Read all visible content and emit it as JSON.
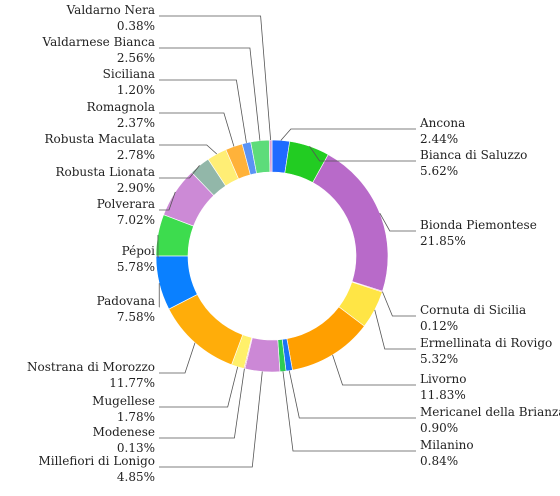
{
  "chart_data": {
    "type": "pie",
    "donut": true,
    "title": "",
    "legend": "none",
    "slices": [
      {
        "name": "Ancona",
        "label": "2.44%",
        "value": 2.44,
        "color": "#1f6bff"
      },
      {
        "name": "Bianca di Saluzzo",
        "label": "5.62%",
        "value": 5.62,
        "color": "#22cc22"
      },
      {
        "name": "Bionda Piemontese",
        "label": "21.85%",
        "value": 21.85,
        "color": "#b86ac9"
      },
      {
        "name": "Cornuta di Sicilia",
        "label": "0.12%",
        "value": 0.12,
        "color": "#e8206a"
      },
      {
        "name": "Ermellinata di Rovigo",
        "label": "5.32%",
        "value": 5.32,
        "color": "#ffe545"
      },
      {
        "name": "Livorno",
        "label": "11.83%",
        "value": 11.83,
        "color": "#ff9f00"
      },
      {
        "name": "Mericanel della Brianza",
        "label": "0.90%",
        "value": 0.9,
        "color": "#1a73f5"
      },
      {
        "name": "Milanino",
        "label": "0.84%",
        "value": 0.84,
        "color": "#2fcc55"
      },
      {
        "name": "Millefiori di Lonigo",
        "label": "4.85%",
        "value": 4.85,
        "color": "#cc88d6"
      },
      {
        "name": "Modenese",
        "label": "0.13%",
        "value": 0.13,
        "color": "#d5607a"
      },
      {
        "name": "Mugellese",
        "label": "1.78%",
        "value": 1.78,
        "color": "#fff06a"
      },
      {
        "name": "Nostrana di Morozzo",
        "label": "11.77%",
        "value": 11.77,
        "color": "#ffad0a"
      },
      {
        "name": "Padovana",
        "label": "7.58%",
        "value": 7.58,
        "color": "#0a80ff"
      },
      {
        "name": "Pépoi",
        "label": "5.78%",
        "value": 5.78,
        "color": "#3ddc4e"
      },
      {
        "name": "Polverara",
        "label": "7.02%",
        "value": 7.02,
        "color": "#cc8ad6"
      },
      {
        "name": "Robusta Lionata",
        "label": "2.90%",
        "value": 2.9,
        "color": "#92b7a9"
      },
      {
        "name": "Robusta Maculata",
        "label": "2.78%",
        "value": 2.78,
        "color": "#ffee75"
      },
      {
        "name": "Romagnola",
        "label": "2.37%",
        "value": 2.37,
        "color": "#ffb23a"
      },
      {
        "name": "Siciliana",
        "label": "1.20%",
        "value": 1.2,
        "color": "#5a93f5"
      },
      {
        "name": "Valdarnese Bianca",
        "label": "2.56%",
        "value": 2.56,
        "color": "#5ddc7a"
      },
      {
        "name": "Valdarno Nera",
        "label": "0.38%",
        "value": 0.38,
        "color": "#d7a0d6"
      }
    ]
  }
}
